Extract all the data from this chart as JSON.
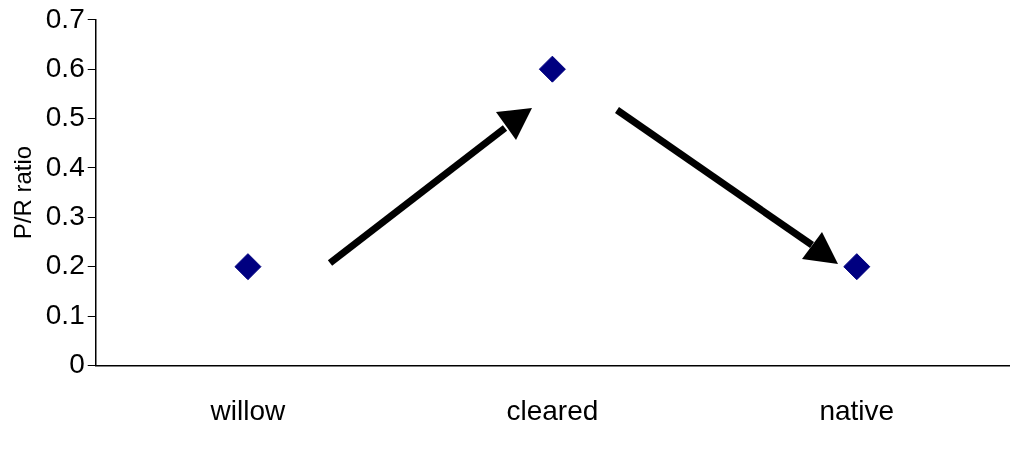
{
  "chart_data": {
    "type": "scatter",
    "ylabel": "P/R ratio",
    "categories": [
      "willow",
      "cleared",
      "native"
    ],
    "series": [
      {
        "color": "#000080",
        "values": [
          0.2,
          0.6,
          0.2
        ]
      }
    ],
    "ylim": [
      0,
      0.7
    ],
    "yticks": [
      0,
      0.1,
      0.2,
      0.3,
      0.4,
      0.5,
      0.6,
      0.7
    ],
    "grid": false,
    "legend": false,
    "marker": "diamond"
  }
}
